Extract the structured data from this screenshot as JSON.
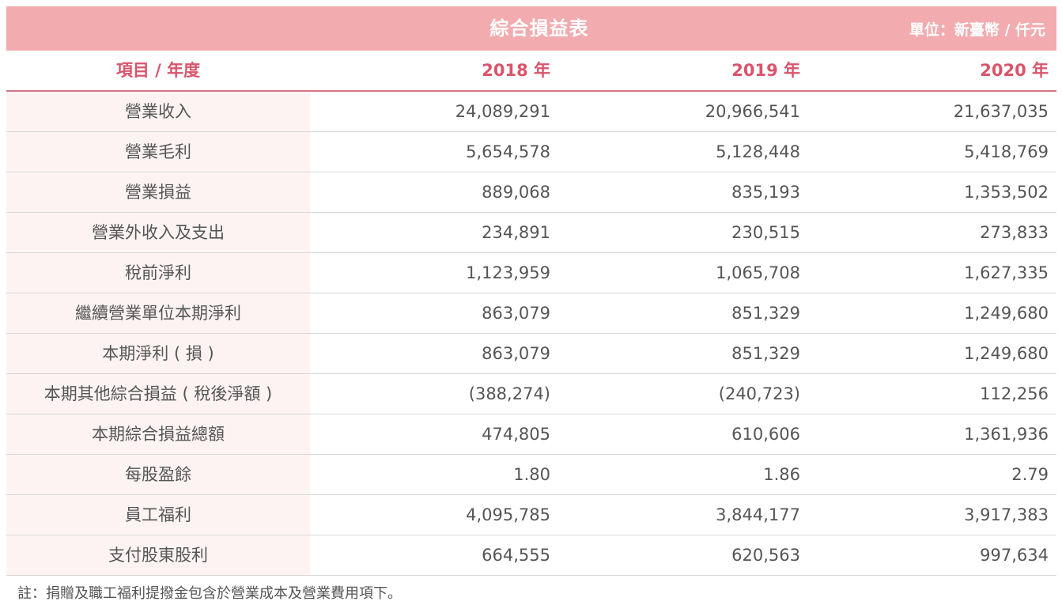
{
  "table": {
    "title": "綜合損益表",
    "unit": "單位：新臺幣 / 仟元",
    "headers": [
      "項目 / 年度",
      "2018 年",
      "2019 年",
      "2020 年"
    ],
    "rows": [
      {
        "item": "營業收入",
        "v2018": "24,089,291",
        "v2019": "20,966,541",
        "v2020": "21,637,035"
      },
      {
        "item": "營業毛利",
        "v2018": "5,654,578",
        "v2019": "5,128,448",
        "v2020": "5,418,769"
      },
      {
        "item": "營業損益",
        "v2018": "889,068",
        "v2019": "835,193",
        "v2020": "1,353,502"
      },
      {
        "item": "營業外收入及支出",
        "v2018": "234,891",
        "v2019": "230,515",
        "v2020": "273,833"
      },
      {
        "item": "稅前淨利",
        "v2018": "1,123,959",
        "v2019": "1,065,708",
        "v2020": "1,627,335"
      },
      {
        "item": "繼續營業單位本期淨利",
        "v2018": "863,079",
        "v2019": "851,329",
        "v2020": "1,249,680"
      },
      {
        "item": "本期淨利 ( 損 )",
        "v2018": "863,079",
        "v2019": "851,329",
        "v2020": "1,249,680"
      },
      {
        "item": "本期其他綜合損益 ( 稅後淨額 )",
        "v2018": "(388,274)",
        "v2019": "(240,723)",
        "v2020": "112,256"
      },
      {
        "item": "本期綜合損益總額",
        "v2018": "474,805",
        "v2019": "610,606",
        "v2020": "1,361,936"
      },
      {
        "item": "每股盈餘",
        "v2018": "1.80",
        "v2019": "1.86",
        "v2020": "2.79"
      },
      {
        "item": "員工福利",
        "v2018": "4,095,785",
        "v2019": "3,844,177",
        "v2020": "3,917,383"
      },
      {
        "item": "支付股東股利",
        "v2018": "664,555",
        "v2019": "620,563",
        "v2020": "997,634"
      }
    ],
    "note": "註：捐贈及職工福利提撥金包含於營業成本及營業費用項下。"
  },
  "colors": {
    "title_bg": "#f2abae",
    "header_text": "#d9546a",
    "item_bg": "#fdf3f3"
  }
}
